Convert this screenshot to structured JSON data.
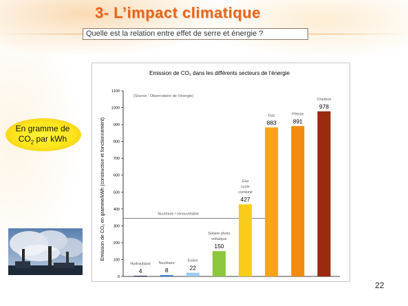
{
  "slide": {
    "title": "3- L’impact climatique",
    "subtitle": "Quelle est la relation entre effet de serre et énergie ?",
    "unit_label_line1": "En gramme de",
    "unit_label_co2": "CO",
    "unit_label_sub": "2",
    "unit_label_line2_rest": " par kWh",
    "page_number": "22"
  },
  "chart_data": {
    "type": "bar",
    "title": "Emission de CO₂ dans les différents secteurs de l’énergie",
    "ylabel": "Emission de CO₂ en gramme/kWh (construction et fonctionnement)",
    "source_note": "(Source : Observatoire de l’énergie)",
    "ylim": [
      0,
      1100
    ],
    "yticks": [
      0,
      100,
      200,
      300,
      400,
      500,
      600,
      700,
      800,
      900,
      1000,
      1100
    ],
    "categories": [
      "Hydraulique",
      "Nucléaire",
      "Eolien",
      "Solaire photovoltaïque",
      "Gaz cycle combiné",
      "Gaz",
      "Pétrole",
      "Charbon"
    ],
    "category_labels": [
      [
        "Hydraulique"
      ],
      [
        "Nucléaire"
      ],
      [
        "Eolien"
      ],
      [
        "Solaire photo",
        "voltaïque"
      ],
      [
        "Gaz",
        "cycle",
        "combiné"
      ],
      [
        "Gaz"
      ],
      [
        "Pétrole"
      ],
      [
        "Charbon"
      ]
    ],
    "values": [
      4,
      8,
      22,
      150,
      427,
      883,
      891,
      978
    ],
    "colors": [
      "#1f2a55",
      "#3a7fd0",
      "#9fcbf0",
      "#8cc63f",
      "#f7cc1a",
      "#f9a31a",
      "#f08a10",
      "#9a2a10"
    ],
    "reference_line": {
      "label": "Nucléaire / renouvelable",
      "value": 345
    }
  }
}
